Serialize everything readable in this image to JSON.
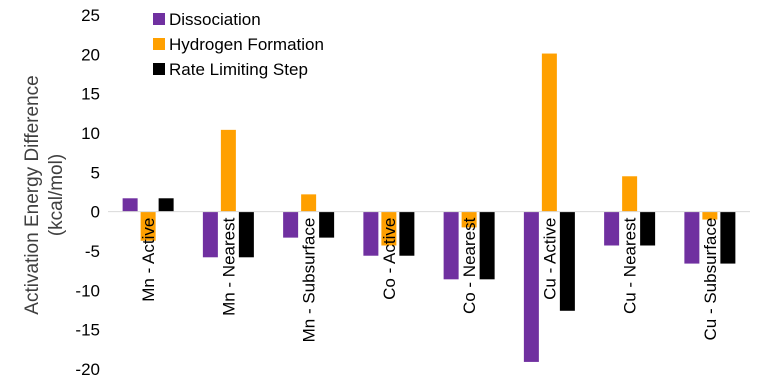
{
  "chart_data": {
    "type": "bar",
    "title": "",
    "xlabel": "",
    "ylabel": [
      "Activation Energy Difference",
      "(kcal/mol)"
    ],
    "ylim": [
      -20,
      25
    ],
    "yticks": [
      25,
      20,
      15,
      10,
      5,
      0,
      -5,
      -10,
      -15,
      -20
    ],
    "grid": false,
    "legend_position": "top-left",
    "categories": [
      "Mn - Active",
      "Mn - Nearest",
      "Mn - Subsurface",
      "Co - Active",
      "Co - Nearest",
      "Cu - Active",
      "Cu - Nearest",
      "Cu - Subsurface"
    ],
    "series": [
      {
        "name": "Dissociation",
        "color": "#7030A0",
        "values": [
          1.7,
          -5.8,
          -3.3,
          -5.6,
          -8.6,
          -19.1,
          -4.3,
          -6.6
        ]
      },
      {
        "name": "Hydrogen Formation",
        "color": "#FFA000",
        "values": [
          -3.7,
          10.4,
          2.2,
          -4.3,
          -2.0,
          20.1,
          4.5,
          -1.0
        ]
      },
      {
        "name": "Rate Limiting Step",
        "color": "#000000",
        "values": [
          1.7,
          -5.8,
          -3.3,
          -5.6,
          -8.6,
          -12.6,
          -4.3,
          -6.6
        ]
      }
    ]
  }
}
